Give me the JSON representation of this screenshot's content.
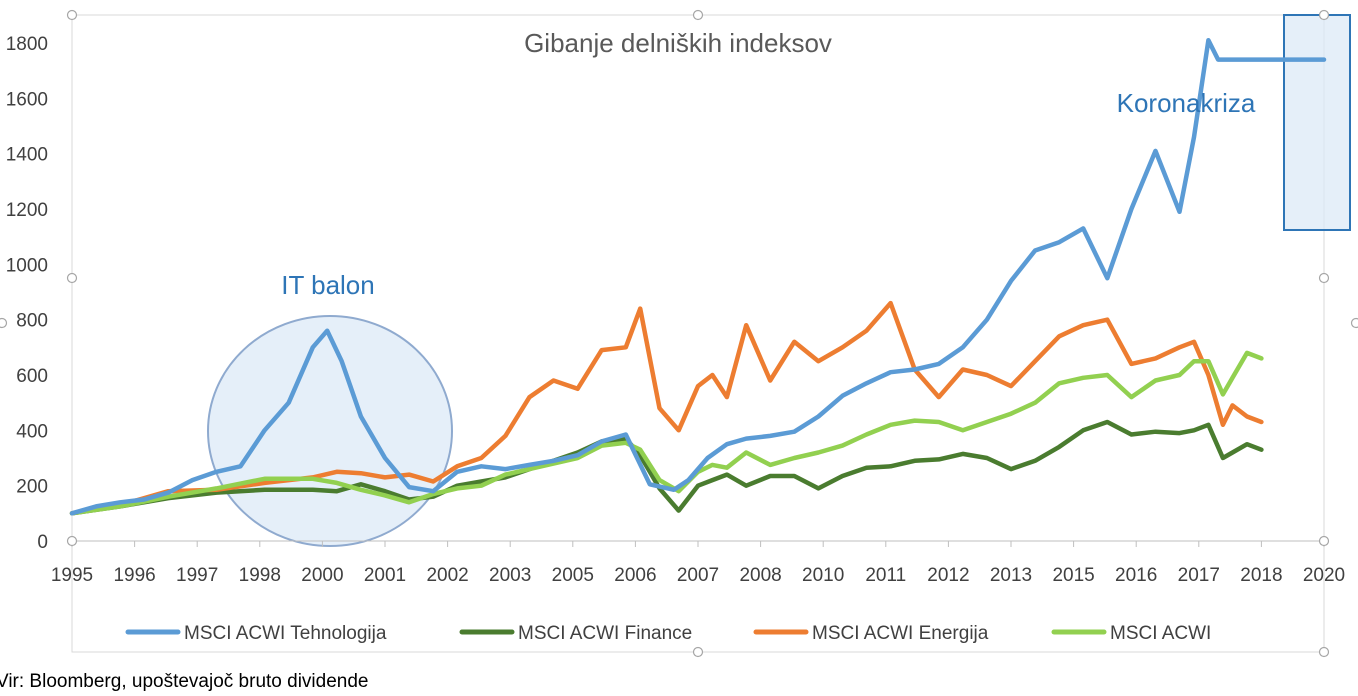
{
  "chart_data": {
    "type": "line",
    "title": "Gibanje delniških indeksov",
    "xlabel": "",
    "ylabel": "",
    "ylim": [
      0,
      1800
    ],
    "yticks": [
      0,
      200,
      400,
      600,
      800,
      1000,
      1200,
      1400,
      1600,
      1800
    ],
    "x_tick_labels": [
      "1995",
      "1996",
      "1997",
      "1998",
      "2000",
      "2001",
      "2002",
      "2003",
      "2005",
      "2006",
      "2007",
      "2008",
      "2010",
      "2011",
      "2012",
      "2013",
      "2015",
      "2016",
      "2017",
      "2018",
      "2020"
    ],
    "grid": false,
    "legend_position": "bottom",
    "series": [
      {
        "name": "MSCI ACWI Tehnologija",
        "color": "#5b9bd5",
        "x": [
          1995.0,
          1995.5,
          1996.0,
          1996.5,
          1997.0,
          1997.5,
          1998.0,
          1998.5,
          1999.0,
          1999.5,
          2000.0,
          2000.3,
          2000.6,
          2001.0,
          2001.5,
          2002.0,
          2002.5,
          2003.0,
          2003.5,
          2004.0,
          2004.5,
          2005.0,
          2005.5,
          2006.0,
          2006.5,
          2007.0,
          2007.5,
          2007.8,
          2008.2,
          2008.6,
          2009.0,
          2009.5,
          2010.0,
          2010.5,
          2011.0,
          2011.5,
          2012.0,
          2012.5,
          2013.0,
          2013.5,
          2014.0,
          2014.5,
          2015.0,
          2015.5,
          2016.0,
          2016.5,
          2017.0,
          2017.5,
          2018.0,
          2018.3,
          2018.6,
          2018.8,
          2019.2,
          2019.6,
          2019.9,
          2020.1,
          2020.3,
          2020.7,
          2020.9,
          2021.0
        ],
        "values": [
          100,
          125,
          140,
          150,
          175,
          220,
          250,
          270,
          400,
          500,
          700,
          760,
          650,
          450,
          300,
          195,
          180,
          250,
          270,
          260,
          275,
          290,
          310,
          360,
          385,
          205,
          185,
          220,
          300,
          350,
          370,
          380,
          395,
          450,
          525,
          570,
          610,
          620,
          640,
          700,
          800,
          940,
          1050,
          1080,
          1130,
          950,
          1200,
          1410,
          1190,
          1460,
          1810,
          1740,
          1740,
          1740,
          1740,
          1740,
          1740,
          1740,
          1740,
          1740
        ]
      },
      {
        "name": "MSCI ACWI Finance",
        "color": "#4a7c2f",
        "x": [
          1995.0,
          1996.0,
          1997.0,
          1998.0,
          1999.0,
          2000.0,
          2000.5,
          2001.0,
          2001.5,
          2002.0,
          2002.5,
          2003.0,
          2003.5,
          2004.0,
          2004.5,
          2005.0,
          2005.5,
          2006.0,
          2006.5,
          2006.8,
          2007.2,
          2007.6,
          2008.0,
          2008.3,
          2008.6,
          2009.0,
          2009.5,
          2010.0,
          2010.5,
          2011.0,
          2011.5,
          2012.0,
          2012.5,
          2013.0,
          2013.5,
          2014.0,
          2014.5,
          2015.0,
          2015.5,
          2016.0,
          2016.5,
          2017.0,
          2017.5,
          2018.0,
          2018.3,
          2018.6,
          2018.9,
          2019.1,
          2019.4,
          2019.7
        ],
        "values": [
          100,
          125,
          155,
          175,
          185,
          185,
          180,
          205,
          180,
          150,
          160,
          200,
          215,
          230,
          260,
          290,
          320,
          360,
          370,
          310,
          190,
          110,
          200,
          220,
          240,
          200,
          235,
          235,
          190,
          235,
          265,
          270,
          290,
          295,
          315,
          300,
          260,
          290,
          340,
          400,
          430,
          385,
          395,
          390,
          400,
          420,
          300,
          320,
          350,
          330
        ]
      },
      {
        "name": "MSCI ACWI Energija",
        "color": "#ed7d31",
        "x": [
          1995.0,
          1996.0,
          1997.0,
          1998.0,
          1999.0,
          2000.0,
          2000.5,
          2001.0,
          2001.5,
          2002.0,
          2002.5,
          2003.0,
          2003.5,
          2004.0,
          2004.5,
          2005.0,
          2005.5,
          2006.0,
          2006.5,
          2006.8,
          2007.2,
          2007.6,
          2008.0,
          2008.3,
          2008.6,
          2009.0,
          2009.5,
          2010.0,
          2010.5,
          2011.0,
          2011.5,
          2012.0,
          2012.5,
          2013.0,
          2013.5,
          2014.0,
          2014.5,
          2015.0,
          2015.5,
          2016.0,
          2016.5,
          2017.0,
          2017.5,
          2018.0,
          2018.3,
          2018.6,
          2018.9,
          2019.1,
          2019.4,
          2019.7
        ],
        "values": [
          100,
          130,
          180,
          185,
          210,
          230,
          250,
          245,
          230,
          240,
          215,
          270,
          300,
          380,
          520,
          580,
          550,
          690,
          700,
          840,
          480,
          400,
          560,
          600,
          520,
          780,
          580,
          720,
          650,
          700,
          760,
          860,
          620,
          520,
          620,
          600,
          560,
          650,
          740,
          780,
          800,
          640,
          660,
          700,
          720,
          600,
          420,
          490,
          450,
          430
        ]
      },
      {
        "name": "MSCI ACWI",
        "color": "#92d050",
        "x": [
          1995.0,
          1996.0,
          1997.0,
          1998.0,
          1999.0,
          2000.0,
          2000.5,
          2001.0,
          2001.5,
          2002.0,
          2002.5,
          2003.0,
          2003.5,
          2004.0,
          2004.5,
          2005.0,
          2005.5,
          2006.0,
          2006.5,
          2006.8,
          2007.2,
          2007.6,
          2008.0,
          2008.3,
          2008.6,
          2009.0,
          2009.5,
          2010.0,
          2010.5,
          2011.0,
          2011.5,
          2012.0,
          2012.5,
          2013.0,
          2013.5,
          2014.0,
          2014.5,
          2015.0,
          2015.5,
          2016.0,
          2016.5,
          2017.0,
          2017.5,
          2018.0,
          2018.3,
          2018.6,
          2018.9,
          2019.1,
          2019.4,
          2019.7
        ],
        "values": [
          100,
          125,
          160,
          190,
          225,
          225,
          210,
          185,
          165,
          140,
          170,
          190,
          200,
          240,
          260,
          280,
          300,
          345,
          355,
          330,
          220,
          180,
          250,
          275,
          265,
          320,
          275,
          300,
          320,
          345,
          385,
          420,
          435,
          430,
          400,
          430,
          460,
          500,
          570,
          590,
          600,
          520,
          580,
          600,
          650,
          650,
          530,
          590,
          680,
          660
        ]
      }
    ],
    "annotations": [
      {
        "text": "IT balon",
        "shape": "circle"
      },
      {
        "text": "Koronakriza",
        "shape": "rectangle"
      }
    ]
  },
  "source_note": "Vir: Bloomberg, upoštevajoč bruto dividende"
}
